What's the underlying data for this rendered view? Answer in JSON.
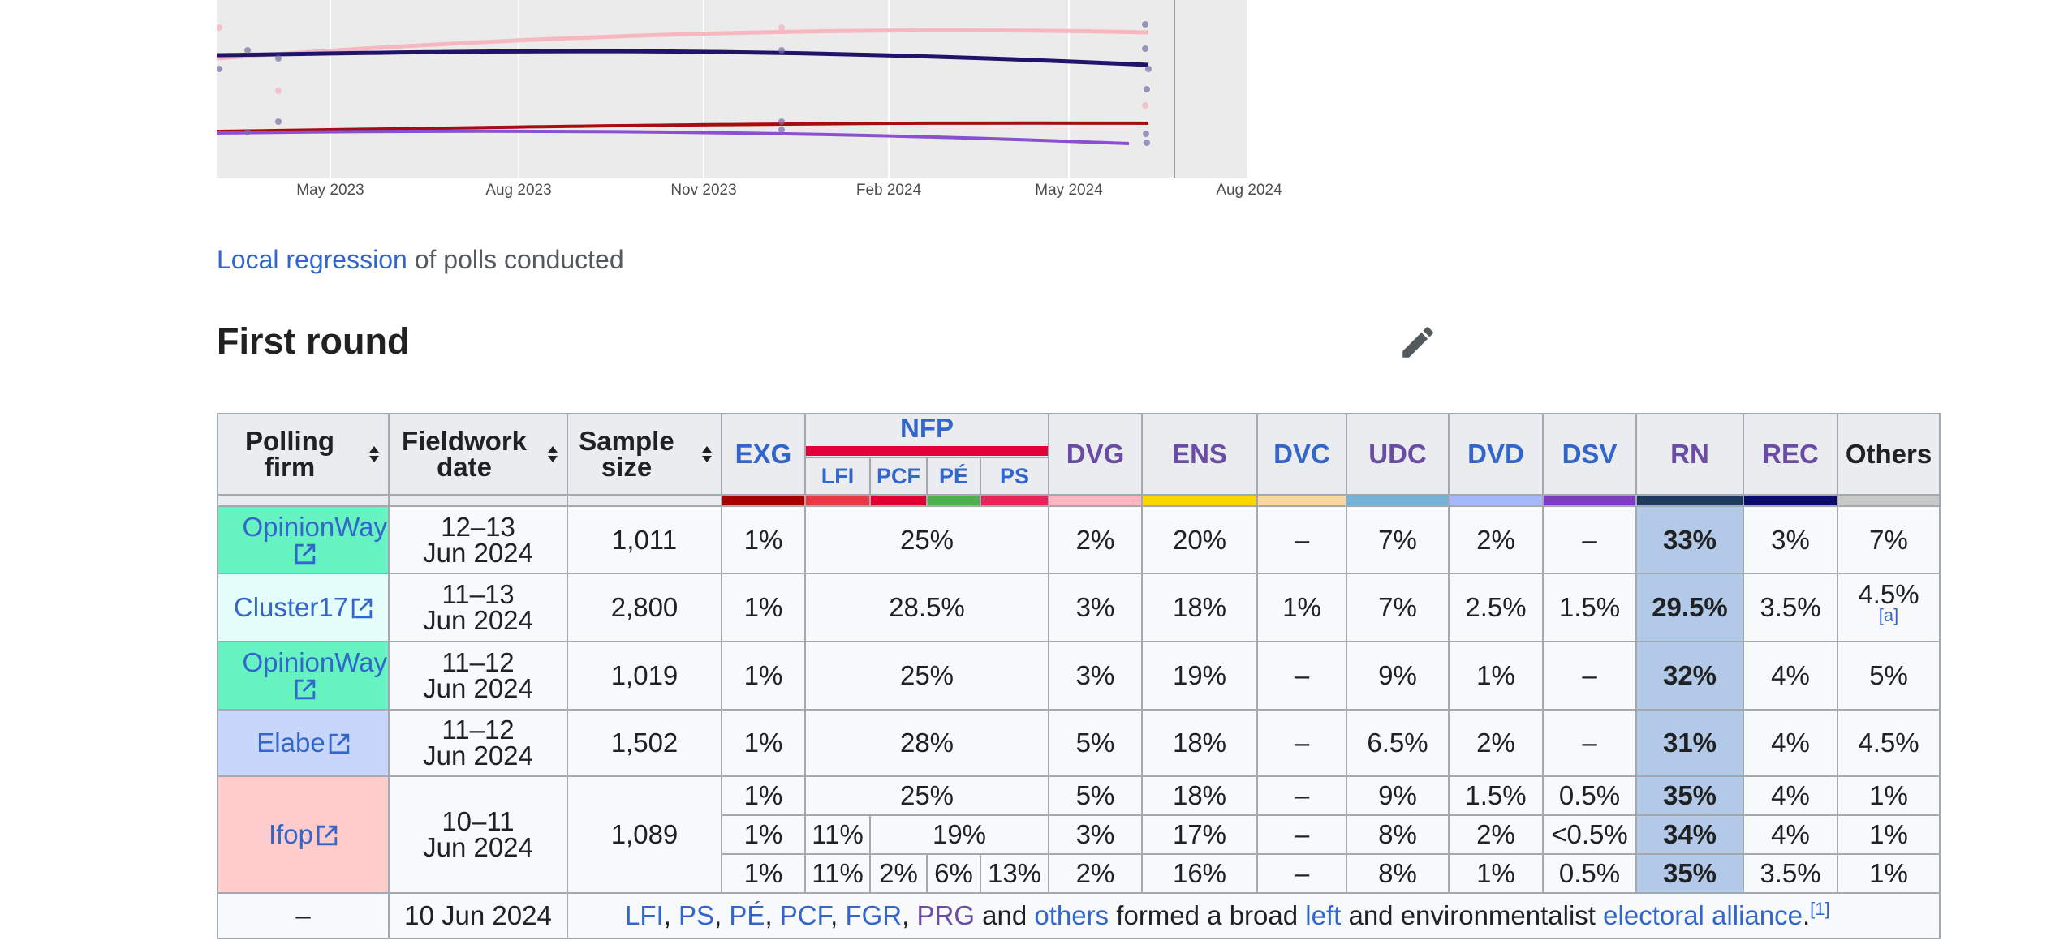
{
  "chart": {
    "x_ticks": [
      "May 2023",
      "Aug 2023",
      "Nov 2023",
      "Feb 2024",
      "May 2024",
      "Aug 2024"
    ],
    "colors": {
      "ens_trend": "#f7b7c0",
      "rn_trend": "#1f1469",
      "lfi_trend": "#a50e0e",
      "exg_trend": "#8b4fd1",
      "background": "#ebebeb"
    }
  },
  "caption": {
    "link": "Local regression",
    "text": " of polls conducted"
  },
  "section_title": "First round",
  "table": {
    "headers": {
      "polling_firm": "Polling firm",
      "fieldwork_date": "Fieldwork date",
      "sample_size": "Sample size",
      "exg": "EXG",
      "nfp": "NFP",
      "lfi": "LFI",
      "pcf": "PCF",
      "pe": "PÉ",
      "ps": "PS",
      "dvg": "DVG",
      "ens": "ENS",
      "dvc": "DVC",
      "udc": "UDC",
      "dvd": "DVD",
      "dsv": "DSV",
      "rn": "RN",
      "rec": "REC",
      "others": "Others"
    },
    "party_colors": {
      "exg": "#a50000",
      "nfp": "#e4003b",
      "lfi": "#e63b47",
      "pcf": "#dd0033",
      "pe": "#4cb050",
      "ps": "#e7245a",
      "dvg": "#ffb6c1",
      "ens": "#ffd600",
      "dvc": "#fad7a0",
      "udc": "#74b3d8",
      "dvd": "#a7b7fb",
      "dsv": "#7e3ac9",
      "rn": "#1e3a5f",
      "rec": "#0b0b6b",
      "others": "#c8c8c8"
    },
    "rows": [
      {
        "firm": "OpinionWay",
        "firm_color": "#66f2c1",
        "date": "12–13 Jun 2024",
        "sample": "1,011",
        "exg": "1%",
        "nfp": "25%",
        "dvg": "2%",
        "ens": "20%",
        "dvc": "–",
        "udc": "7%",
        "dvd": "2%",
        "dsv": "–",
        "rn": "33%",
        "rec": "3%",
        "others": "7%"
      },
      {
        "firm": "Cluster17",
        "firm_color": "#e5fdfa",
        "date": "11–13 Jun 2024",
        "sample": "2,800",
        "exg": "1%",
        "nfp": "28.5%",
        "dvg": "3%",
        "ens": "18%",
        "dvc": "1%",
        "udc": "7%",
        "dvd": "2.5%",
        "dsv": "1.5%",
        "rn": "29.5%",
        "rec": "3.5%",
        "others": "4.5%",
        "others_note": "[a]"
      },
      {
        "firm": "OpinionWay",
        "firm_color": "#66f2c1",
        "date": "11–12 Jun 2024",
        "sample": "1,019",
        "exg": "1%",
        "nfp": "25%",
        "dvg": "3%",
        "ens": "19%",
        "dvc": "–",
        "udc": "9%",
        "dvd": "1%",
        "dsv": "–",
        "rn": "32%",
        "rec": "4%",
        "others": "5%"
      },
      {
        "firm": "Elabe",
        "firm_color": "#c9d6fb",
        "date": "11–12 Jun 2024",
        "sample": "1,502",
        "exg": "1%",
        "nfp": "28%",
        "dvg": "5%",
        "ens": "18%",
        "dvc": "–",
        "udc": "6.5%",
        "dvd": "2%",
        "dsv": "–",
        "rn": "31%",
        "rec": "4%",
        "others": "4.5%"
      }
    ],
    "ifop": {
      "firm": "Ifop",
      "firm_color": "#ffcccc",
      "date": "10–11 Jun 2024",
      "sample": "1,089",
      "sub1": {
        "exg": "1%",
        "nfp": "25%",
        "dvg": "5%",
        "ens": "18%",
        "dvc": "–",
        "udc": "9%",
        "dvd": "1.5%",
        "dsv": "0.5%",
        "rn": "35%",
        "rec": "4%",
        "others": "1%"
      },
      "sub2": {
        "exg": "1%",
        "lfi": "11%",
        "rest": "19%",
        "dvg": "3%",
        "ens": "17%",
        "dvc": "–",
        "udc": "8%",
        "dvd": "2%",
        "dsv": "<0.5%",
        "rn": "34%",
        "rec": "4%",
        "others": "1%"
      },
      "sub3": {
        "exg": "1%",
        "lfi": "11%",
        "pcf": "2%",
        "pe": "6%",
        "ps": "13%",
        "dvg": "2%",
        "ens": "16%",
        "dvc": "–",
        "udc": "8%",
        "dvd": "1%",
        "dsv": "0.5%",
        "rn": "35%",
        "rec": "3.5%",
        "others": "1%"
      }
    },
    "event_row": {
      "firm": "–",
      "date": "10 Jun 2024",
      "lfi": "LFI",
      "sep1": ", ",
      "ps": "PS",
      "sep2": ", ",
      "pe": "PÉ",
      "sep3": ", ",
      "pcf": "PCF",
      "sep4": ", ",
      "fgr": "FGR",
      "sep5": ", ",
      "prg": "PRG",
      "and": " and ",
      "others": "others",
      "formed": " formed a broad ",
      "left": "left",
      "and_env": " and environmentalist ",
      "alliance": "electoral alliance",
      "period": ".",
      "ref": "[1]"
    }
  }
}
